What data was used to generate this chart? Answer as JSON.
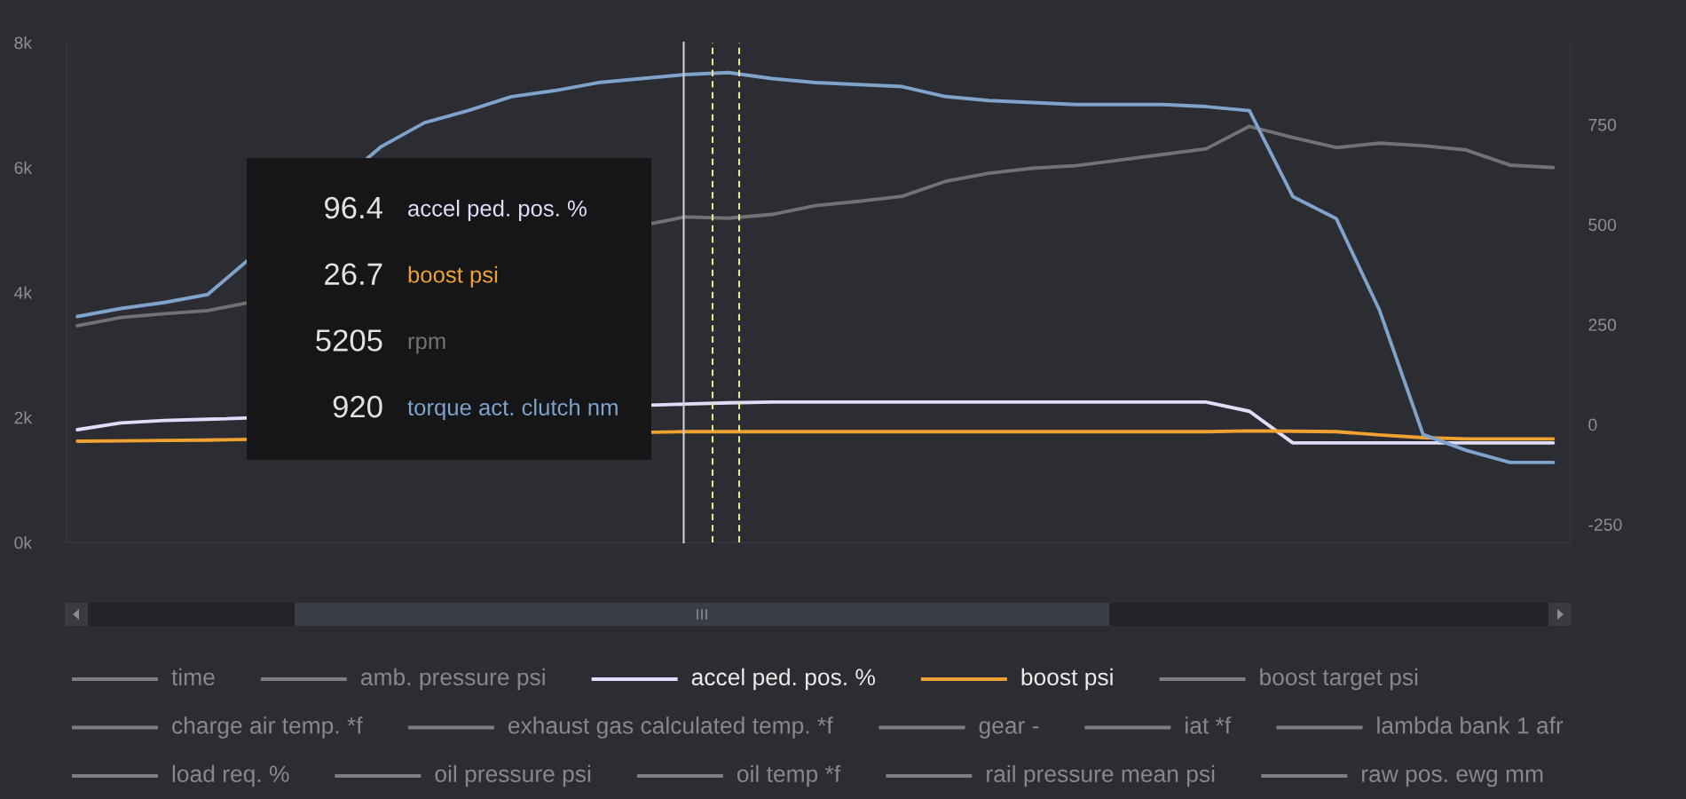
{
  "chart_data": {
    "type": "line",
    "categories": [
      null,
      null,
      null,
      null,
      null,
      null,
      null,
      null,
      null,
      null,
      null,
      null,
      null,
      null,
      null,
      null,
      null,
      null,
      null,
      null,
      null,
      null,
      null,
      null,
      null,
      null,
      null,
      null,
      null,
      null,
      null,
      null,
      null,
      null,
      null
    ],
    "series": [
      {
        "name": "time",
        "color": "#7b7e84",
        "values": [
          null,
          null,
          null,
          null,
          null,
          null,
          null,
          null,
          null,
          null,
          null,
          null,
          null,
          null,
          null,
          null,
          null,
          null,
          null,
          null,
          null,
          null,
          null,
          null,
          null,
          null,
          null,
          null,
          null,
          null,
          null,
          null,
          null,
          null,
          null
        ]
      },
      {
        "name": "amb. pressure psi",
        "color": "#7b7e84",
        "values": [
          null,
          null,
          null,
          null,
          null,
          null,
          null,
          null,
          null,
          null,
          null,
          null,
          null,
          null,
          null,
          null,
          null,
          null,
          null,
          null,
          null,
          null,
          null,
          null,
          null,
          null,
          null,
          null,
          null,
          null,
          null,
          null,
          null,
          null,
          null
        ]
      },
      {
        "name": "accel ped. pos. %",
        "color": "#e2dcfa",
        "axis": "y2",
        "values": [
          -13,
          4,
          10,
          13,
          null,
          null,
          null,
          null,
          null,
          null,
          null,
          null,
          null,
          null,
          51,
          54,
          56,
          56,
          56,
          56,
          56,
          56,
          56,
          56,
          56,
          56,
          56,
          33,
          -46,
          -46,
          -46,
          -46,
          -46,
          -46,
          -46
        ]
      },
      {
        "name": "boost psi",
        "color": "#efa232",
        "axis": "y2",
        "values": [
          -42,
          -41,
          -40,
          -39,
          null,
          null,
          null,
          null,
          null,
          null,
          null,
          null,
          null,
          null,
          -18,
          -18,
          -18,
          -18,
          -18,
          -18,
          -18,
          -18,
          -18,
          -18,
          -18,
          -18,
          -18,
          -16,
          -17,
          -18,
          -26,
          -33,
          -36,
          -36,
          -36
        ]
      },
      {
        "name": "boost target psi",
        "color": "#7b7e84",
        "values": [
          null,
          null,
          null,
          null,
          null,
          null,
          null,
          null,
          null,
          null,
          null,
          null,
          null,
          null,
          null,
          null,
          null,
          null,
          null,
          null,
          null,
          null,
          null,
          null,
          null,
          null,
          null,
          null,
          null,
          null,
          null,
          null,
          null,
          null,
          null
        ]
      },
      {
        "name": "charge air temp. *f",
        "color": "#7b7e84",
        "values": [
          null,
          null,
          null,
          null,
          null,
          null,
          null,
          null,
          null,
          null,
          null,
          null,
          null,
          null,
          null,
          null,
          null,
          null,
          null,
          null,
          null,
          null,
          null,
          null,
          null,
          null,
          null,
          null,
          null,
          null,
          null,
          null,
          null,
          null,
          null
        ]
      },
      {
        "name": "exhaust gas calculated temp. *f",
        "color": "#7b7e84",
        "values": [
          null,
          null,
          null,
          null,
          null,
          null,
          null,
          null,
          null,
          null,
          null,
          null,
          null,
          null,
          null,
          null,
          null,
          null,
          null,
          null,
          null,
          null,
          null,
          null,
          null,
          null,
          null,
          null,
          null,
          null,
          null,
          null,
          null,
          null,
          null
        ]
      },
      {
        "name": "gear -",
        "color": "#7b7e84",
        "values": [
          null,
          null,
          null,
          null,
          null,
          null,
          null,
          null,
          null,
          null,
          null,
          null,
          null,
          null,
          null,
          null,
          null,
          null,
          null,
          null,
          null,
          null,
          null,
          null,
          null,
          null,
          null,
          null,
          null,
          null,
          null,
          null,
          null,
          null,
          null
        ]
      },
      {
        "name": "iat *f",
        "color": "#7b7e84",
        "values": [
          null,
          null,
          null,
          null,
          null,
          null,
          null,
          null,
          null,
          null,
          null,
          null,
          null,
          null,
          null,
          null,
          null,
          null,
          null,
          null,
          null,
          null,
          null,
          null,
          null,
          null,
          null,
          null,
          null,
          null,
          null,
          null,
          null,
          null,
          null
        ]
      },
      {
        "name": "lambda bank 1 afr",
        "color": "#7b7e84",
        "values": [
          null,
          null,
          null,
          null,
          null,
          null,
          null,
          null,
          null,
          null,
          null,
          null,
          null,
          null,
          null,
          null,
          null,
          null,
          null,
          null,
          null,
          null,
          null,
          null,
          null,
          null,
          null,
          null,
          null,
          null,
          null,
          null,
          null,
          null,
          null
        ]
      },
      {
        "name": "load req. %",
        "color": "#7b7e84",
        "values": [
          null,
          null,
          null,
          null,
          null,
          null,
          null,
          null,
          null,
          null,
          null,
          null,
          null,
          null,
          null,
          null,
          null,
          null,
          null,
          null,
          null,
          null,
          null,
          null,
          null,
          null,
          null,
          null,
          null,
          null,
          null,
          null,
          null,
          null,
          null
        ]
      },
      {
        "name": "oil pressure psi",
        "color": "#7b7e84",
        "values": [
          null,
          null,
          null,
          null,
          null,
          null,
          null,
          null,
          null,
          null,
          null,
          null,
          null,
          null,
          null,
          null,
          null,
          null,
          null,
          null,
          null,
          null,
          null,
          null,
          null,
          null,
          null,
          null,
          null,
          null,
          null,
          null,
          null,
          null,
          null
        ]
      },
      {
        "name": "oil temp *f",
        "color": "#7b7e84",
        "values": [
          null,
          null,
          null,
          null,
          null,
          null,
          null,
          null,
          null,
          null,
          null,
          null,
          null,
          null,
          null,
          null,
          null,
          null,
          null,
          null,
          null,
          null,
          null,
          null,
          null,
          null,
          null,
          null,
          null,
          null,
          null,
          null,
          null,
          null,
          null
        ]
      },
      {
        "name": "rail pressure mean psi",
        "color": "#7b7e84",
        "values": [
          null,
          null,
          null,
          null,
          null,
          null,
          null,
          null,
          null,
          null,
          null,
          null,
          null,
          null,
          null,
          null,
          null,
          null,
          null,
          null,
          null,
          null,
          null,
          null,
          null,
          null,
          null,
          null,
          null,
          null,
          null,
          null,
          null,
          null,
          null
        ]
      },
      {
        "name": "raw pos. ewg mm",
        "color": "#7b7e84",
        "values": [
          null,
          null,
          null,
          null,
          null,
          null,
          null,
          null,
          null,
          null,
          null,
          null,
          null,
          null,
          null,
          null,
          null,
          null,
          null,
          null,
          null,
          null,
          null,
          null,
          null,
          null,
          null,
          null,
          null,
          null,
          null,
          null,
          null,
          null,
          null
        ]
      },
      {
        "name": "rpm",
        "color": "#717274",
        "values": [
          3470,
          3600,
          3660,
          3710,
          null,
          null,
          null,
          null,
          null,
          null,
          null,
          null,
          null,
          null,
          5210,
          5190,
          5250,
          5390,
          5460,
          5540,
          5780,
          5910,
          5990,
          6030,
          6120,
          6210,
          6300,
          6660,
          6480,
          6320,
          6390,
          6350,
          6280,
          6040,
          6000
        ]
      },
      {
        "name": "torque act. clutch nm",
        "color": "#7fa3cb",
        "axis": "y2",
        "values": [
          270,
          290,
          305,
          325,
          null,
          null,
          null,
          695,
          755,
          785,
          820,
          835,
          855,
          865,
          875,
          880,
          865,
          855,
          850,
          845,
          820,
          810,
          805,
          800,
          800,
          800,
          795,
          785,
          570,
          515,
          285,
          -25,
          -65,
          -95,
          -95
        ]
      }
    ],
    "ylim": [
      0,
      8000
    ],
    "yticks": [
      {
        "value": 0,
        "label": "0k"
      },
      {
        "value": 2000,
        "label": "2k"
      },
      {
        "value": 4000,
        "label": "4k"
      },
      {
        "value": 6000,
        "label": "6k"
      },
      {
        "value": 8000,
        "label": "8k"
      }
    ],
    "y2lim": [
      -295,
      955
    ],
    "y2ticks": [
      -250,
      0,
      250,
      500,
      750
    ],
    "annotations": [
      "96.4",
      "26.7",
      "5205",
      "920"
    ],
    "legend": "bottom"
  }
}
